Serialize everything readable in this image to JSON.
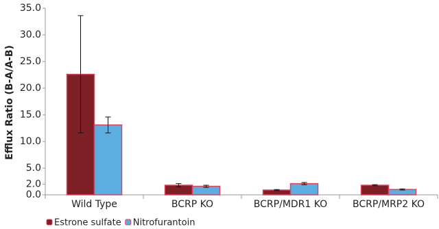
{
  "chart_data": {
    "type": "bar",
    "y_label": "Efflux Ratio (B-A/A-B)",
    "categories": [
      "Wild Type",
      "BCRP KO",
      "BCRP/MDR1 KO",
      "BCRP/MRP2 KO"
    ],
    "series": [
      {
        "name": "Estrone sulfate",
        "color": "#7d1f24",
        "values": [
          22.6,
          1.8,
          0.9,
          1.8
        ],
        "errors": [
          11.0,
          0.3,
          0.1,
          0.1
        ]
      },
      {
        "name": "Nitrofurantoin",
        "color": "#5aafe0",
        "values": [
          13.1,
          1.6,
          2.1,
          1.0
        ],
        "errors": [
          1.5,
          0.2,
          0.2,
          0.1
        ]
      }
    ],
    "ylim": [
      0,
      35
    ],
    "yticks": [
      {
        "value": 0,
        "label": "0.0"
      },
      {
        "value": 2,
        "label": "2.0"
      },
      {
        "value": 5,
        "label": "5.0"
      },
      {
        "value": 10,
        "label": "10.0"
      },
      {
        "value": 15,
        "label": "15.0"
      },
      {
        "value": 20,
        "label": "20.0"
      },
      {
        "value": 25,
        "label": "25.0"
      },
      {
        "value": 30,
        "label": "30.0"
      },
      {
        "value": 35,
        "label": "35.0"
      }
    ],
    "legend": "bottom-left"
  }
}
